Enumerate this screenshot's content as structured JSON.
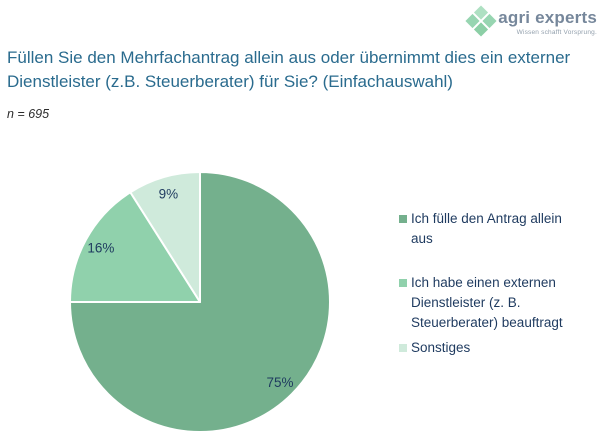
{
  "brand": {
    "name": "agri experts",
    "tagline": "Wissen schafft Vorsprung.",
    "icon": "clover-diamond-icon",
    "name_color": "#76879B",
    "icon_colors": [
      "#AEE0C2",
      "#97D5B1",
      "#97D5B1",
      "#8CCFA6"
    ]
  },
  "question": {
    "title": "Füllen Sie den Mehrfachantrag allein aus oder übernimmt dies ein externer\nDienstleister (z.B. Steuerberater) für Sie? (Einfachauswahl)",
    "sample_size": "n = 695"
  },
  "chart_data": {
    "type": "pie",
    "title": "Füllen Sie den Mehrfachantrag allein aus oder übernimmt dies ein externer Dienstleister (z.B. Steuerberater) für Sie? (Einfachauswahl)",
    "subtitle": "n = 695",
    "categories": [
      "Ich fülle den Antrag allein aus",
      "Ich habe einen externen Dienstleister (z. B. Steuerberater) beauftragt",
      "Sonstiges"
    ],
    "values": [
      75,
      16,
      9
    ],
    "data_labels": [
      "75%",
      "16%",
      "9%"
    ],
    "colors": [
      "#74B08D",
      "#90D1AC",
      "#CFEADB"
    ],
    "label_color": "#1E3A5F",
    "start_angle_deg": 0,
    "direction": "clockwise",
    "legend_position": "right",
    "grid": false
  }
}
